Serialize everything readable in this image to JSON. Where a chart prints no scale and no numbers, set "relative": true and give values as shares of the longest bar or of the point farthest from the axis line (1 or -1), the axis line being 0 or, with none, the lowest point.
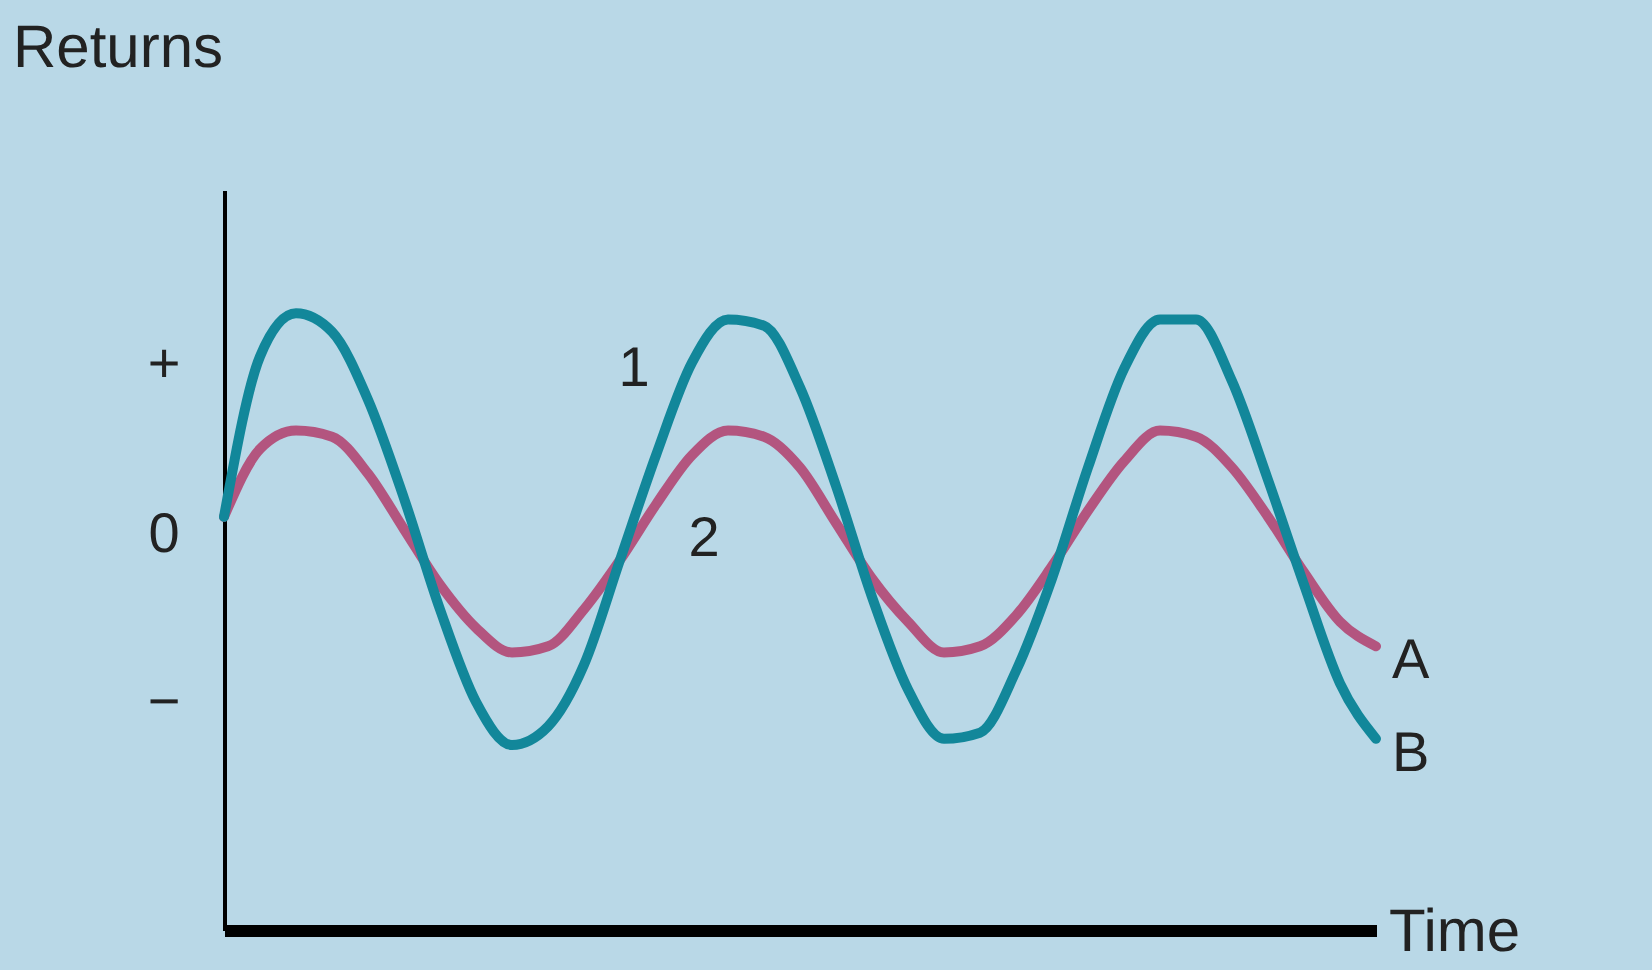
{
  "chart_data": {
    "type": "line",
    "relative": true,
    "ylabel": "Returns",
    "xlabel": "Time",
    "categories": [
      null,
      null,
      null,
      null,
      null,
      null,
      null,
      null,
      null,
      null,
      null,
      null,
      null,
      null,
      null,
      null,
      null,
      null,
      null,
      null,
      null,
      null,
      null,
      null,
      null,
      null,
      null,
      null,
      null,
      null,
      null,
      null,
      null
    ],
    "series": [
      {
        "name": "A",
        "color": "#b3557f",
        "values": [
          0.67,
          0.78,
          0.81,
          0.8,
          0.74,
          0.65,
          0.56,
          0.49,
          0.45,
          0.46,
          0.52,
          0.6,
          0.69,
          0.77,
          0.81,
          0.8,
          0.75,
          0.66,
          0.57,
          0.5,
          0.45,
          0.46,
          0.51,
          0.59,
          0.68,
          0.76,
          0.81,
          0.8,
          0.75,
          0.67,
          0.58,
          0.5,
          0.46
        ]
      },
      {
        "name": "B",
        "color": "#12879a",
        "values": [
          0.67,
          0.93,
          1.0,
          0.97,
          0.86,
          0.7,
          0.52,
          0.37,
          0.3,
          0.33,
          0.43,
          0.6,
          0.77,
          0.92,
          0.99,
          0.98,
          0.88,
          0.72,
          0.54,
          0.39,
          0.31,
          0.32,
          0.42,
          0.57,
          0.75,
          0.91,
          0.99,
          0.99,
          0.89,
          0.73,
          0.56,
          0.4,
          0.31
        ]
      }
    ],
    "annotations": [
      "+",
      "0",
      "−",
      "1",
      "2"
    ],
    "marker": "none",
    "line_style": "solid",
    "grid": false
  }
}
